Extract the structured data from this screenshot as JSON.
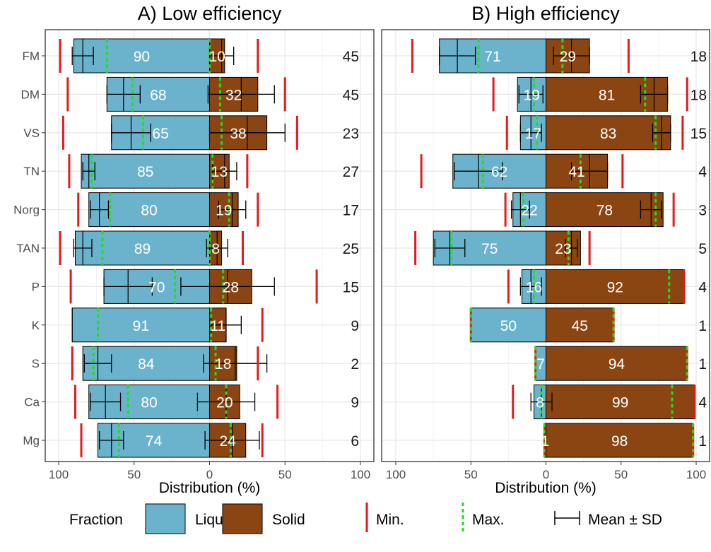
{
  "chart_data": [
    {
      "type": "bar",
      "orientation": "horizontal-diverging",
      "title": "A) Low efficiency",
      "xlabel": "Distribution (%)",
      "xlim": [
        -100,
        100
      ],
      "xticks": [
        {
          "value": -100,
          "label": "100"
        },
        {
          "value": -50,
          "label": "50"
        },
        {
          "value": 0,
          "label": "0"
        },
        {
          "value": 50,
          "label": "50"
        },
        {
          "value": 100,
          "label": "100"
        }
      ],
      "grid": true,
      "categories": [
        "FM",
        "DM",
        "VS",
        "TN",
        "Norg",
        "TAN",
        "P",
        "K",
        "S",
        "Ca",
        "Mg"
      ],
      "series": [
        {
          "name": "Liquid",
          "values": [
            90,
            68,
            65,
            85,
            80,
            89,
            70,
            91,
            84,
            80,
            74
          ]
        },
        {
          "name": "Solid",
          "values": [
            10,
            32,
            38,
            13,
            19,
            8,
            28,
            11,
            18,
            20,
            24
          ]
        }
      ],
      "bar_labels": {
        "liquid": [
          "90",
          "68",
          "65",
          "85",
          "80",
          "89",
          "70",
          "91",
          "84",
          "80",
          "74"
        ],
        "solid": [
          "10",
          "32",
          "38",
          "13",
          "19",
          "8",
          "28",
          "11",
          "18",
          "20",
          "24"
        ]
      },
      "liquid_mean": [
        84,
        57,
        52,
        80,
        73,
        84,
        54,
        91,
        74,
        69,
        65
      ],
      "liquid_sd": [
        7,
        11,
        13,
        4,
        6,
        6,
        16,
        0,
        9,
        10,
        8
      ],
      "liquid_min": [
        99,
        94,
        97,
        93,
        87,
        99,
        92,
        null,
        91,
        89,
        85
      ],
      "liquid_max": [
        68,
        51,
        44,
        78,
        66,
        71,
        23,
        74,
        77,
        54,
        60
      ],
      "solid_mean": [
        8,
        21,
        25,
        10,
        15,
        5,
        12,
        11,
        17,
        11,
        15
      ],
      "solid_sd": [
        8,
        22,
        25,
        8,
        9,
        7,
        31,
        10,
        21,
        19,
        18
      ],
      "solid_min": [
        32,
        50,
        58,
        25,
        32,
        22,
        71,
        35,
        32,
        45,
        35
      ],
      "solid_max": [
        0,
        7,
        8,
        2,
        13,
        0,
        9,
        1,
        4,
        11,
        14
      ],
      "n": [
        "45",
        "45",
        "23",
        "27",
        "17",
        "25",
        "15",
        "9",
        "2",
        "9",
        "6"
      ]
    },
    {
      "type": "bar",
      "orientation": "horizontal-diverging",
      "title": "B) High efficiency",
      "xlabel": "Distribution (%)",
      "xlim": [
        -100,
        100
      ],
      "xticks": [
        {
          "value": -100,
          "label": "100"
        },
        {
          "value": -50,
          "label": "50"
        },
        {
          "value": 0,
          "label": "0"
        },
        {
          "value": 50,
          "label": "50"
        },
        {
          "value": 100,
          "label": "100"
        }
      ],
      "grid": true,
      "categories": [
        "FM",
        "DM",
        "VS",
        "TN",
        "Norg",
        "TAN",
        "P",
        "K",
        "S",
        "Ca",
        "Mg"
      ],
      "series": [
        {
          "name": "Liquid",
          "values": [
            71,
            19,
            17,
            62,
            22,
            75,
            16,
            50,
            7,
            8,
            1
          ]
        },
        {
          "name": "Solid",
          "values": [
            29,
            81,
            83,
            41,
            78,
            23,
            92,
            45,
            94,
            99,
            98
          ]
        }
      ],
      "bar_labels": {
        "liquid": [
          "71",
          "19",
          "17",
          "62",
          "22",
          "75",
          "16",
          "50",
          "7",
          "8",
          "1"
        ],
        "solid": [
          "29",
          "81",
          "83",
          "41",
          "78",
          "23",
          "92",
          "45",
          "94",
          "99",
          "98"
        ]
      },
      "liquid_mean": [
        59,
        10,
        10,
        45,
        17,
        64,
        10,
        50,
        7,
        3,
        1
      ],
      "liquid_sd": [
        12,
        8,
        7,
        16,
        6,
        10,
        7,
        0,
        0,
        7,
        0
      ],
      "liquid_min": [
        89,
        35,
        26,
        83,
        27,
        87,
        25,
        50,
        7,
        22,
        1
      ],
      "liquid_max": [
        45,
        8,
        6,
        42,
        15,
        63,
        8,
        50,
        7,
        3,
        1
      ],
      "solid_mean": [
        17,
        72,
        77,
        29,
        70,
        17,
        92,
        45,
        94,
        99,
        98
      ],
      "solid_sd": [
        12,
        9,
        6,
        12,
        7,
        4,
        0,
        0,
        0,
        0,
        0
      ],
      "solid_min": [
        55,
        94,
        91,
        51,
        85,
        29,
        92,
        45,
        94,
        99,
        98
      ],
      "solid_max": [
        11,
        66,
        73,
        23,
        73,
        15,
        82,
        45,
        94,
        84,
        98
      ],
      "n": [
        "18",
        "18",
        "15",
        "4",
        "3",
        "5",
        "4",
        "1",
        "1",
        "4",
        "1"
      ]
    }
  ],
  "legend": {
    "title": "Fraction",
    "liquid_label": "Liquid",
    "solid_label": "Solid",
    "min_label": "Min.",
    "max_label": "Max.",
    "meansd_label": "Mean ± SD"
  },
  "colors": {
    "liquid": "#6BB3CC",
    "solid": "#8B4513",
    "min": "#E41A1C",
    "max": "#22DD22",
    "grid_major": "#E6E6E6",
    "grid_minor": "#F2F2F2"
  }
}
